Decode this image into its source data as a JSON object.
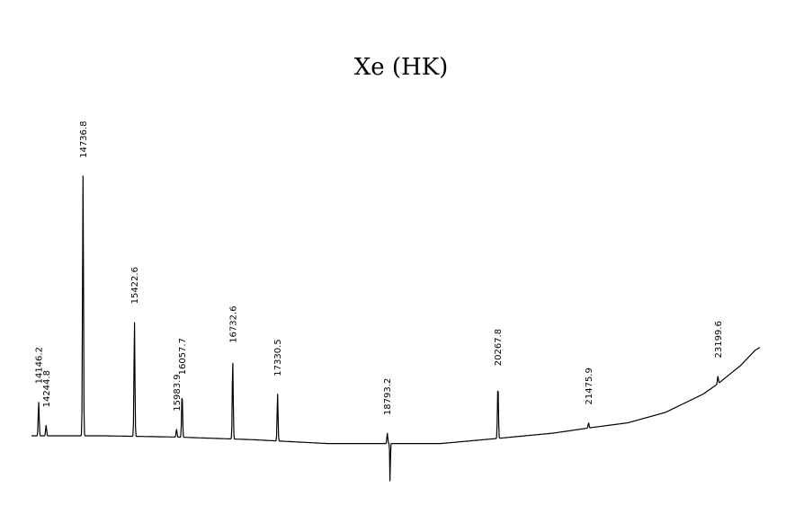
{
  "chart_data": {
    "type": "line",
    "title": "Xe (HK)",
    "xlabel": "",
    "ylabel": "",
    "grid": false,
    "legend": "none",
    "peaks": [
      {
        "label": "14146.2",
        "x": 14146.2,
        "y": 0.13
      },
      {
        "label": "14244.8",
        "x": 14244.8,
        "y": 0.04
      },
      {
        "label": "14736.8",
        "x": 14736.8,
        "y": 1.0
      },
      {
        "label": "15422.6",
        "x": 15422.6,
        "y": 0.44
      },
      {
        "label": "15983.9",
        "x": 15983.9,
        "y": 0.03
      },
      {
        "label": "16057.7",
        "x": 16057.7,
        "y": 0.17
      },
      {
        "label": "16732.6",
        "x": 16732.6,
        "y": 0.3
      },
      {
        "label": "17330.5",
        "x": 17330.5,
        "y": 0.18
      },
      {
        "label": "18793.2",
        "x": 18793.2,
        "y": 0.04
      },
      {
        "label": "20267.8",
        "x": 20267.8,
        "y": 0.21
      },
      {
        "label": "21475.9",
        "x": 21475.9,
        "y": 0.02
      },
      {
        "label": "23199.6",
        "x": 23199.6,
        "y": 0.03
      }
    ],
    "baseline": [
      {
        "x": 14050,
        "y": 0.01
      },
      {
        "x": 15000,
        "y": 0.01
      },
      {
        "x": 16000,
        "y": 0.005
      },
      {
        "x": 17000,
        "y": -0.005
      },
      {
        "x": 18000,
        "y": -0.02
      },
      {
        "x": 18800,
        "y": -0.02
      },
      {
        "x": 19500,
        "y": -0.02
      },
      {
        "x": 20267.8,
        "y": 0.0
      },
      {
        "x": 21000,
        "y": 0.02
      },
      {
        "x": 21475.9,
        "y": 0.04
      },
      {
        "x": 22000,
        "y": 0.06
      },
      {
        "x": 22500,
        "y": 0.1
      },
      {
        "x": 23000,
        "y": 0.17
      },
      {
        "x": 23199.6,
        "y": 0.21
      },
      {
        "x": 23500,
        "y": 0.28
      },
      {
        "x": 23700,
        "y": 0.34
      },
      {
        "x": 23760,
        "y": 0.35
      }
    ],
    "dip": {
      "x": 18830,
      "y": -0.15
    },
    "xlim": [
      14050,
      23760
    ],
    "ylim": [
      -0.17,
      1.02
    ]
  }
}
